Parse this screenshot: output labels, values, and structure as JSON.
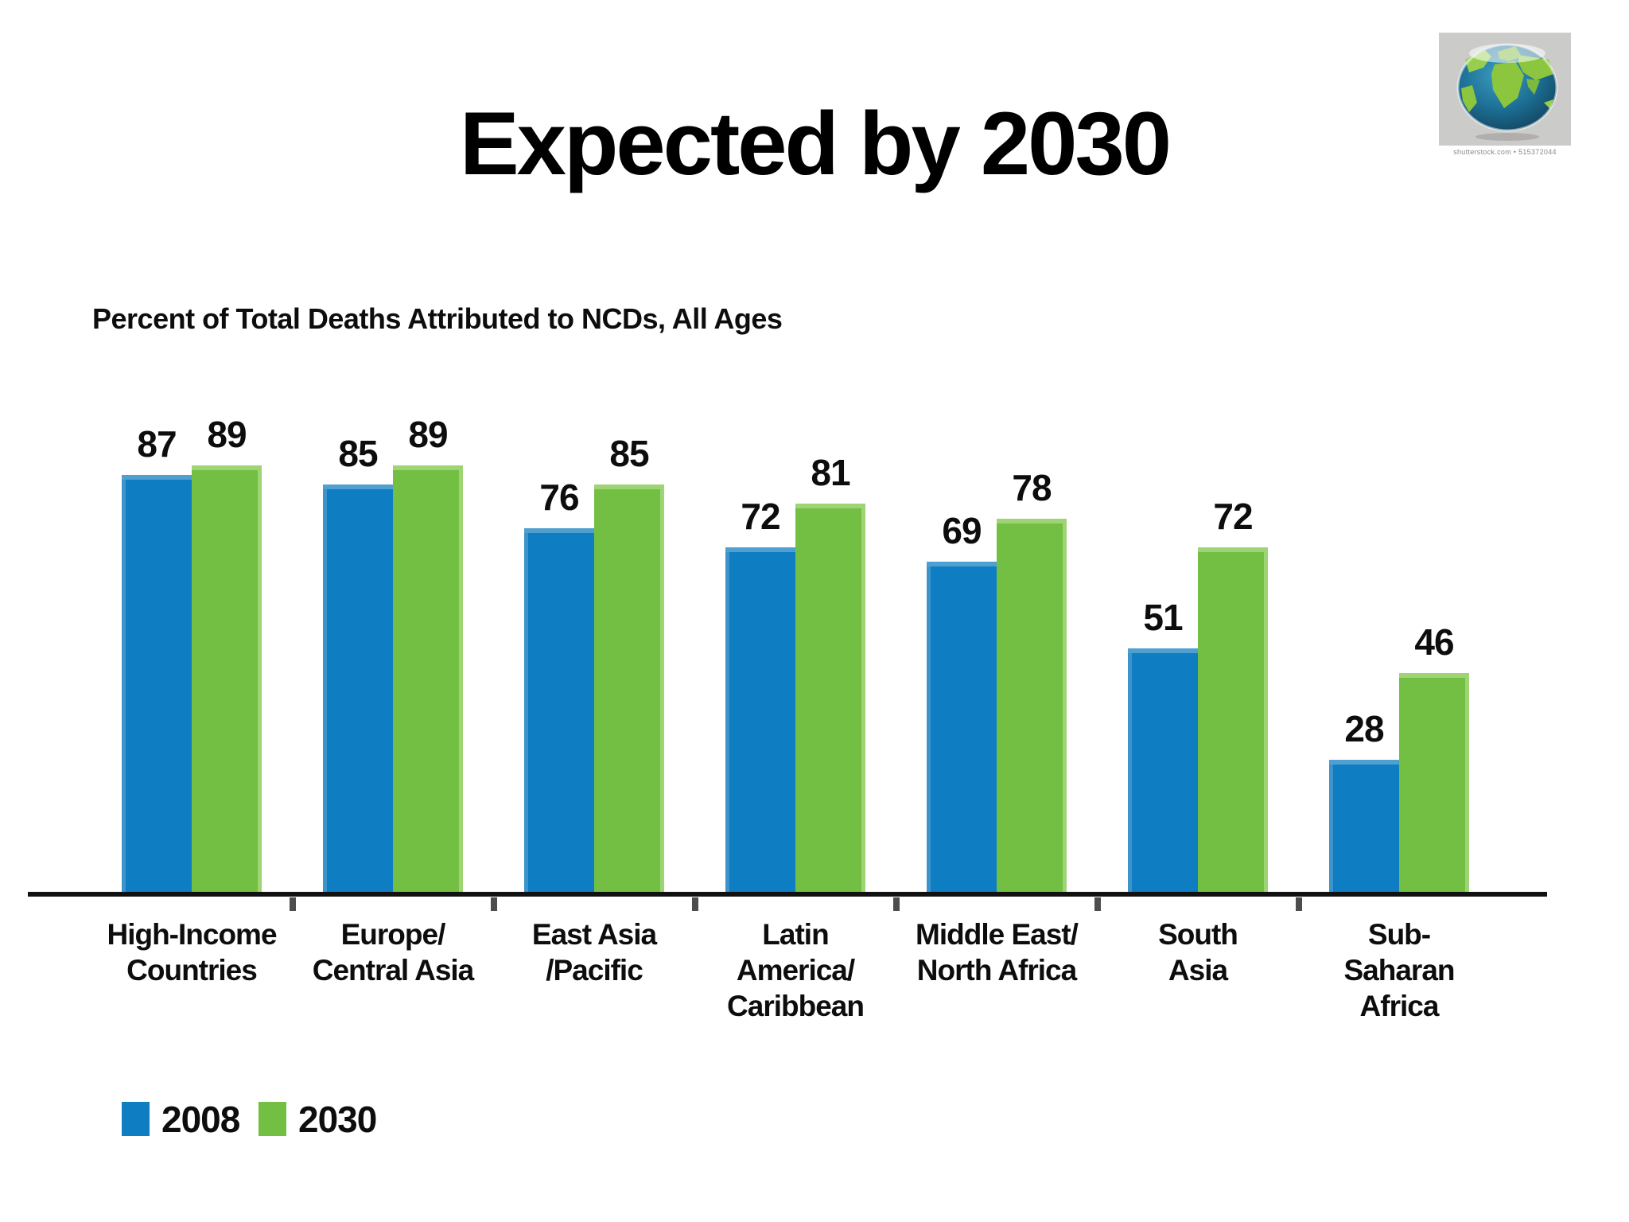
{
  "slide": {
    "title": "Expected by 2030"
  },
  "chart_data": {
    "type": "bar",
    "title": "Percent of Total Deaths Attributed to NCDs, All Ages",
    "categories": [
      "High-Income Countries",
      "Europe/Central Asia",
      "East Asia/Pacific",
      "Latin America/Caribbean",
      "Middle East/North Africa",
      "South Asia",
      "Sub-Saharan Africa"
    ],
    "category_lines": [
      [
        "High-Income",
        "Countries"
      ],
      [
        "Europe/",
        "Central Asia"
      ],
      [
        "East Asia",
        "/Pacific"
      ],
      [
        "Latin",
        "America/",
        "Caribbean"
      ],
      [
        "Middle East/",
        "North Africa"
      ],
      [
        "South",
        "Asia"
      ],
      [
        "Sub-",
        "Saharan",
        "Africa"
      ]
    ],
    "series": [
      {
        "name": "2008",
        "color": "#0e7dc2",
        "values": [
          87,
          85,
          76,
          72,
          69,
          51,
          28
        ]
      },
      {
        "name": "2030",
        "color": "#72bf44",
        "values": [
          89,
          89,
          85,
          81,
          78,
          72,
          46
        ]
      }
    ],
    "xlabel": "",
    "ylabel": "",
    "ylim": [
      0,
      100
    ],
    "grid": false,
    "value_labels": true,
    "legend_position": "bottom-left"
  },
  "legend": {
    "items": [
      {
        "label": "2008",
        "color": "#0e7dc2"
      },
      {
        "label": "2030",
        "color": "#72bf44"
      }
    ]
  },
  "globe": {
    "credit": "shutterstock.com • 515372044",
    "ocean_color": "#1c6d93",
    "land_color": "#8cc63f",
    "background": "#cbcbca"
  }
}
